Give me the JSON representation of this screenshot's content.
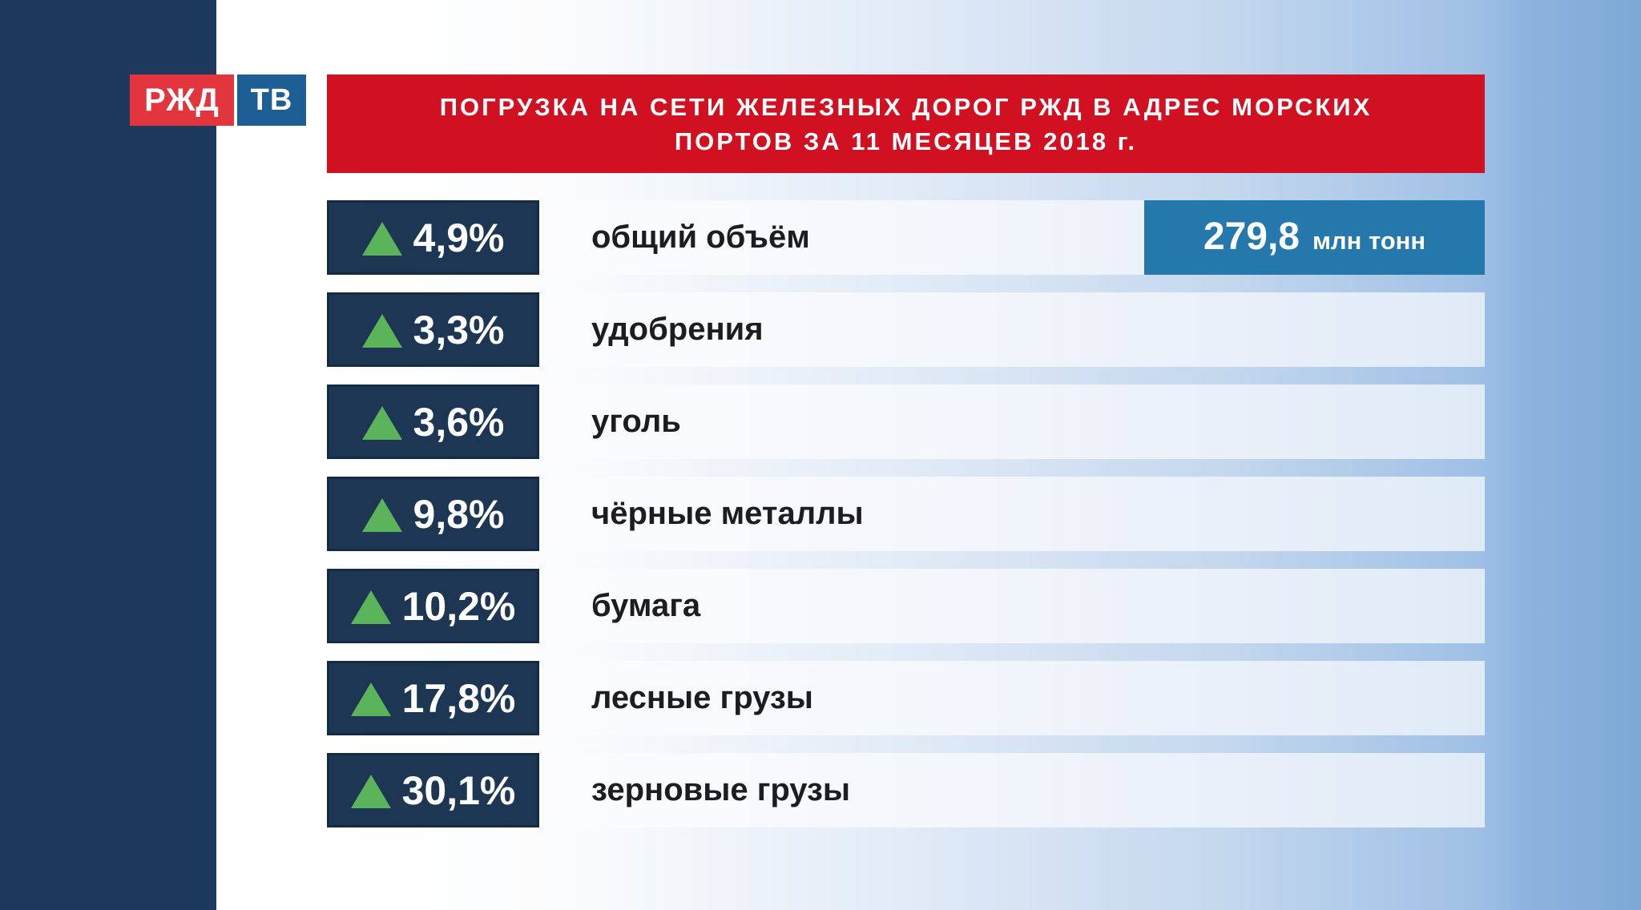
{
  "branding": {
    "rzd": "РЖД",
    "tv": "ТВ"
  },
  "header": {
    "title_line1": "ПОГРУЗКА НА СЕТИ ЖЕЛЕЗНЫХ ДОРОГ РЖД В АДРЕС МОРСКИХ",
    "title_line2": "ПОРТОВ ЗА 11 МЕСЯЦЕВ 2018 г."
  },
  "table": {
    "rows": [
      {
        "percent": "4,9%",
        "label": "общий объём",
        "badge": {
          "value": "279,8",
          "unit": "млн тонн"
        }
      },
      {
        "percent": "3,3%",
        "label": "удобрения"
      },
      {
        "percent": "3,6%",
        "label": "уголь"
      },
      {
        "percent": "9,8%",
        "label": "чёрные металлы"
      },
      {
        "percent": "10,2%",
        "label": "бумага"
      },
      {
        "percent": "17,8%",
        "label": "лесные грузы"
      },
      {
        "percent": "30,1%",
        "label": "зерновые грузы"
      }
    ]
  },
  "colors": {
    "sidebar_navy": "#1d3a5c",
    "box_navy": "#1c3653",
    "header_red": "#d11021",
    "logo_red": "#e2353d",
    "logo_blue": "#1d5f95",
    "badge_blue": "#2478ac",
    "arrow_green": "#5cb45a",
    "background_blue": "#7ea8d6"
  },
  "chart_data": {
    "type": "table",
    "title": "ПОГРУЗКА НА СЕТИ ЖЕЛЕЗНЫХ ДОРОГ РЖД В АДРЕС МОРСКИХ ПОРТОВ ЗА 11 МЕСЯЦЕВ 2018 г.",
    "categories": [
      "общий объём",
      "удобрения",
      "уголь",
      "чёрные металлы",
      "бумага",
      "лесные грузы",
      "зерновые грузы"
    ],
    "values_pct_change": [
      4.9,
      3.3,
      3.6,
      9.8,
      10.2,
      17.8,
      30.1
    ],
    "change_direction": "up",
    "total_volume": {
      "category": "общий объём",
      "value": 279.8,
      "unit": "млн тонн"
    },
    "legend_position": "none",
    "grid": false
  }
}
